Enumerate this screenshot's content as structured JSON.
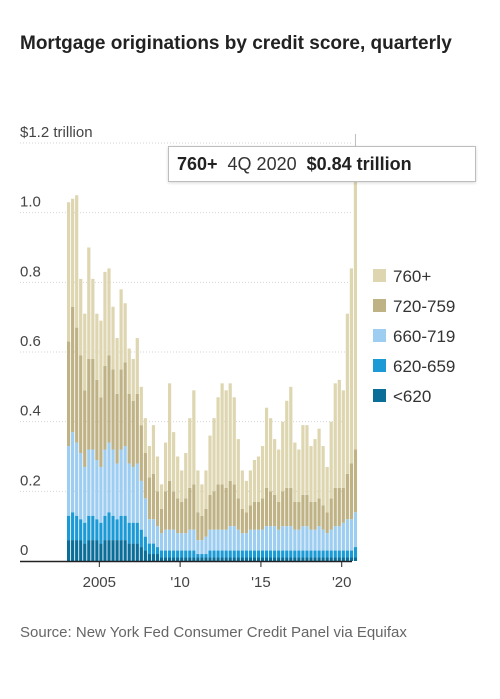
{
  "title": "Mortgage originations by credit score, quarterly",
  "source": "Source: New York Fed Consumer Credit Panel via Equifax",
  "tooltip": {
    "series": "760+",
    "period": "4Q 2020",
    "value": "$0.84 trillion"
  },
  "chart_data": {
    "type": "bar",
    "stacked": true,
    "title": "Mortgage originations by credit score, quarterly",
    "ylabel": "$1.2 trillion",
    "ylim": [
      0,
      1.2
    ],
    "yticks": [
      {
        "value": 0,
        "label": "0"
      },
      {
        "value": 0.2,
        "label": "0.2"
      },
      {
        "value": 0.4,
        "label": "0.4"
      },
      {
        "value": 0.6,
        "label": "0.6"
      },
      {
        "value": 0.8,
        "label": "0.8"
      },
      {
        "value": 1.0,
        "label": "1.0"
      },
      {
        "value": 1.2,
        "label": "$1.2 trillion"
      }
    ],
    "xticks": [
      {
        "label": "2005",
        "year": 2005
      },
      {
        "label": "'10",
        "year": 2010
      },
      {
        "label": "'15",
        "year": 2015
      },
      {
        "label": "'20",
        "year": 2020
      }
    ],
    "grid": true,
    "legend_position": "right",
    "highlight": {
      "series": "760+",
      "quarter": "4Q 2020"
    },
    "categories": [
      "1Q 2003",
      "2Q 2003",
      "3Q 2003",
      "4Q 2003",
      "1Q 2004",
      "2Q 2004",
      "3Q 2004",
      "4Q 2004",
      "1Q 2005",
      "2Q 2005",
      "3Q 2005",
      "4Q 2005",
      "1Q 2006",
      "2Q 2006",
      "3Q 2006",
      "4Q 2006",
      "1Q 2007",
      "2Q 2007",
      "3Q 2007",
      "4Q 2007",
      "1Q 2008",
      "2Q 2008",
      "3Q 2008",
      "4Q 2008",
      "1Q 2009",
      "2Q 2009",
      "3Q 2009",
      "4Q 2009",
      "1Q 2010",
      "2Q 2010",
      "3Q 2010",
      "4Q 2010",
      "1Q 2011",
      "2Q 2011",
      "3Q 2011",
      "4Q 2011",
      "1Q 2012",
      "2Q 2012",
      "3Q 2012",
      "4Q 2012",
      "1Q 2013",
      "2Q 2013",
      "3Q 2013",
      "4Q 2013",
      "1Q 2014",
      "2Q 2014",
      "3Q 2014",
      "4Q 2014",
      "1Q 2015",
      "2Q 2015",
      "3Q 2015",
      "4Q 2015",
      "1Q 2016",
      "2Q 2016",
      "3Q 2016",
      "4Q 2016",
      "1Q 2017",
      "2Q 2017",
      "3Q 2017",
      "4Q 2017",
      "1Q 2018",
      "2Q 2018",
      "3Q 2018",
      "4Q 2018",
      "1Q 2019",
      "2Q 2019",
      "3Q 2019",
      "4Q 2019",
      "1Q 2020",
      "2Q 2020",
      "3Q 2020",
      "4Q 2020"
    ],
    "series": [
      {
        "name": "<620",
        "color": "#0b6e99",
        "values": [
          0.06,
          0.06,
          0.06,
          0.06,
          0.05,
          0.06,
          0.06,
          0.06,
          0.05,
          0.06,
          0.06,
          0.06,
          0.06,
          0.06,
          0.06,
          0.05,
          0.05,
          0.05,
          0.04,
          0.03,
          0.02,
          0.02,
          0.02,
          0.01,
          0.01,
          0.01,
          0.01,
          0.01,
          0.01,
          0.01,
          0.01,
          0.01,
          0.01,
          0.01,
          0.01,
          0.01,
          0.01,
          0.01,
          0.01,
          0.01,
          0.01,
          0.01,
          0.01,
          0.01,
          0.01,
          0.01,
          0.01,
          0.01,
          0.01,
          0.01,
          0.01,
          0.01,
          0.01,
          0.01,
          0.01,
          0.01,
          0.01,
          0.01,
          0.01,
          0.01,
          0.01,
          0.01,
          0.01,
          0.01,
          0.01,
          0.01,
          0.01,
          0.01,
          0.01,
          0.01,
          0.01,
          0.01
        ]
      },
      {
        "name": "620-659",
        "color": "#1c9ad6",
        "values": [
          0.07,
          0.08,
          0.07,
          0.06,
          0.06,
          0.07,
          0.07,
          0.06,
          0.06,
          0.07,
          0.08,
          0.07,
          0.06,
          0.07,
          0.07,
          0.06,
          0.06,
          0.06,
          0.05,
          0.04,
          0.03,
          0.03,
          0.02,
          0.02,
          0.02,
          0.02,
          0.02,
          0.02,
          0.02,
          0.02,
          0.02,
          0.02,
          0.01,
          0.01,
          0.01,
          0.02,
          0.02,
          0.02,
          0.02,
          0.02,
          0.02,
          0.02,
          0.02,
          0.02,
          0.02,
          0.02,
          0.02,
          0.02,
          0.02,
          0.02,
          0.02,
          0.02,
          0.02,
          0.02,
          0.02,
          0.02,
          0.02,
          0.02,
          0.02,
          0.02,
          0.02,
          0.02,
          0.02,
          0.02,
          0.02,
          0.02,
          0.02,
          0.02,
          0.02,
          0.02,
          0.02,
          0.03
        ]
      },
      {
        "name": "660-719",
        "color": "#9dcdf0",
        "values": [
          0.2,
          0.23,
          0.21,
          0.19,
          0.16,
          0.19,
          0.19,
          0.17,
          0.16,
          0.19,
          0.2,
          0.19,
          0.16,
          0.19,
          0.2,
          0.17,
          0.16,
          0.17,
          0.14,
          0.11,
          0.07,
          0.07,
          0.06,
          0.05,
          0.06,
          0.06,
          0.06,
          0.05,
          0.05,
          0.05,
          0.06,
          0.06,
          0.04,
          0.04,
          0.05,
          0.06,
          0.06,
          0.06,
          0.06,
          0.06,
          0.07,
          0.07,
          0.06,
          0.05,
          0.05,
          0.06,
          0.06,
          0.06,
          0.06,
          0.07,
          0.07,
          0.07,
          0.06,
          0.07,
          0.07,
          0.07,
          0.06,
          0.06,
          0.07,
          0.07,
          0.06,
          0.06,
          0.07,
          0.06,
          0.05,
          0.06,
          0.07,
          0.07,
          0.08,
          0.09,
          0.09,
          0.1
        ]
      },
      {
        "name": "720-759",
        "color": "#bfb285",
        "values": [
          0.3,
          0.36,
          0.33,
          0.28,
          0.22,
          0.26,
          0.26,
          0.23,
          0.2,
          0.24,
          0.25,
          0.23,
          0.2,
          0.23,
          0.24,
          0.2,
          0.19,
          0.2,
          0.16,
          0.13,
          0.12,
          0.13,
          0.1,
          0.07,
          0.11,
          0.14,
          0.11,
          0.1,
          0.09,
          0.1,
          0.12,
          0.13,
          0.08,
          0.07,
          0.08,
          0.1,
          0.11,
          0.13,
          0.13,
          0.12,
          0.13,
          0.12,
          0.09,
          0.07,
          0.06,
          0.07,
          0.08,
          0.08,
          0.09,
          0.11,
          0.1,
          0.09,
          0.08,
          0.1,
          0.11,
          0.11,
          0.08,
          0.08,
          0.09,
          0.09,
          0.08,
          0.08,
          0.08,
          0.07,
          0.06,
          0.09,
          0.11,
          0.11,
          0.1,
          0.13,
          0.16,
          0.18
        ]
      },
      {
        "name": "760+",
        "color": "#ddd6b0",
        "values": [
          0.4,
          0.31,
          0.38,
          0.22,
          0.22,
          0.32,
          0.23,
          0.19,
          0.22,
          0.27,
          0.25,
          0.18,
          0.16,
          0.23,
          0.17,
          0.13,
          0.12,
          0.16,
          0.11,
          0.1,
          0.09,
          0.14,
          0.1,
          0.07,
          0.14,
          0.28,
          0.17,
          0.12,
          0.09,
          0.13,
          0.2,
          0.27,
          0.12,
          0.09,
          0.11,
          0.17,
          0.21,
          0.25,
          0.29,
          0.28,
          0.28,
          0.25,
          0.17,
          0.11,
          0.09,
          0.1,
          0.12,
          0.13,
          0.15,
          0.23,
          0.21,
          0.16,
          0.15,
          0.2,
          0.25,
          0.29,
          0.17,
          0.15,
          0.2,
          0.2,
          0.16,
          0.18,
          0.2,
          0.17,
          0.13,
          0.22,
          0.3,
          0.31,
          0.28,
          0.46,
          0.56,
          0.84
        ]
      }
    ]
  }
}
